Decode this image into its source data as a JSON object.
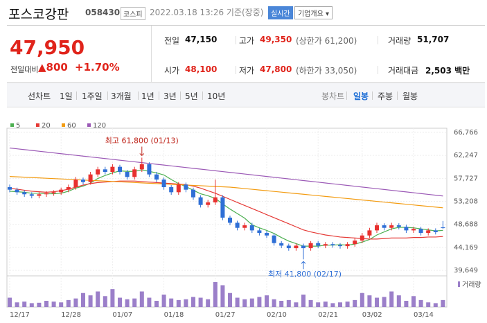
{
  "header": {
    "title": "포스코강판",
    "code": "058430",
    "market": "코스피",
    "timestamp": "2022.03.18 13:26 기준(장중)",
    "realtime": "실시간",
    "company": "기업개요 ▾"
  },
  "quote": {
    "price": "47,950",
    "change_label": "전일대비",
    "change": "▲800",
    "change_pct": "+1.70%",
    "cells": [
      {
        "label": "전일",
        "value": "47,150"
      },
      {
        "label": "고가",
        "value": "49,350",
        "note": "(상한가 61,200)"
      },
      {
        "label": "거래량",
        "value": "51,707"
      },
      {
        "label": "시가",
        "value": "48,100"
      },
      {
        "label": "저가",
        "value": "47,800",
        "note": "(하한가 33,050)"
      },
      {
        "label": "거래대금",
        "value": "2,503 백만"
      }
    ]
  },
  "tabs": {
    "line": [
      "선차트",
      "1일",
      "1주일",
      "3개월",
      "1년",
      "3년",
      "5년",
      "10년"
    ],
    "candle": [
      "봉차트",
      "일봉",
      "주봉",
      "월봉"
    ]
  },
  "chart_data": {
    "type": "candlestick",
    "up_color": "#e8312f",
    "down_color": "#2f6fd6",
    "volume_color": "#9b7fc9",
    "volume_label": "거래량",
    "annotations": {
      "high": "최고 61,800 (01/13)",
      "low": "최저 41,800 (02/17)"
    },
    "categories": [
      "12/17",
      null,
      null,
      null,
      null,
      null,
      null,
      "12/28",
      null,
      null,
      null,
      null,
      null,
      null,
      "01/07",
      null,
      null,
      null,
      null,
      null,
      null,
      "01/18",
      null,
      null,
      null,
      null,
      null,
      null,
      "01/27",
      null,
      null,
      null,
      null,
      null,
      null,
      "02/10",
      null,
      null,
      null,
      null,
      null,
      null,
      "02/21",
      null,
      null,
      null,
      null,
      null,
      "03/02",
      null,
      null,
      null,
      null,
      null,
      null,
      "03/14",
      null,
      null,
      null,
      null
    ],
    "open": [
      56000,
      55500,
      55000,
      54600,
      54300,
      54600,
      54800,
      55000,
      55500,
      56000,
      57500,
      57000,
      58500,
      59500,
      59000,
      60000,
      59000,
      58000,
      59500,
      60500,
      58500,
      57500,
      56000,
      55000,
      56500,
      55500,
      54000,
      52500,
      53000,
      54000,
      50000,
      49000,
      48000,
      48500,
      47500,
      47000,
      46500,
      45000,
      44500,
      44000,
      44500,
      44000,
      45000,
      44500,
      44800,
      44600,
      44400,
      44800,
      45500,
      46500,
      47500,
      48500,
      48000,
      48500,
      48200,
      47500,
      47800,
      47000,
      47500,
      48100
    ],
    "high": [
      56500,
      55900,
      55400,
      55000,
      55000,
      55200,
      55400,
      55900,
      56500,
      58000,
      57900,
      59000,
      60000,
      60000,
      60500,
      60400,
      59400,
      60000,
      61800,
      60900,
      59000,
      57900,
      56400,
      57000,
      56900,
      55900,
      54400,
      53500,
      57500,
      54400,
      50400,
      49400,
      49000,
      49000,
      47900,
      47400,
      46900,
      45400,
      44900,
      44900,
      44900,
      45400,
      45400,
      45200,
      45200,
      45000,
      45200,
      46000,
      47000,
      48000,
      49000,
      48900,
      49000,
      48900,
      48600,
      48200,
      48200,
      47900,
      47900,
      49350
    ],
    "low": [
      55000,
      54500,
      54100,
      53800,
      53800,
      54100,
      54300,
      54500,
      55000,
      55500,
      56500,
      56500,
      58000,
      58500,
      58500,
      58500,
      57500,
      57500,
      59000,
      58000,
      57000,
      55500,
      54500,
      54500,
      55000,
      53500,
      52000,
      52000,
      52500,
      49500,
      48500,
      47500,
      47500,
      47000,
      46500,
      46000,
      44500,
      44000,
      43500,
      43500,
      41800,
      43500,
      44000,
      44000,
      44100,
      43900,
      43900,
      44300,
      45000,
      46000,
      47000,
      47500,
      47500,
      47700,
      47000,
      47000,
      46500,
      46500,
      46700,
      47800
    ],
    "close": [
      55500,
      55000,
      54600,
      54300,
      54600,
      54800,
      55000,
      55500,
      56000,
      57500,
      57000,
      58500,
      59500,
      59000,
      60000,
      59000,
      58000,
      59500,
      60500,
      58500,
      57500,
      56000,
      55000,
      56500,
      55500,
      54000,
      52500,
      53000,
      54000,
      50000,
      49000,
      48000,
      48500,
      47500,
      47000,
      46500,
      45000,
      44500,
      44000,
      44500,
      44000,
      45000,
      44500,
      44800,
      44600,
      44400,
      44800,
      45500,
      46500,
      47500,
      48500,
      48000,
      48500,
      48200,
      47500,
      47800,
      47000,
      47500,
      47150,
      47950
    ],
    "volume": [
      120000,
      60000,
      70000,
      50000,
      55000,
      80000,
      70000,
      60000,
      90000,
      110000,
      180000,
      150000,
      200000,
      140000,
      230000,
      120000,
      100000,
      110000,
      200000,
      120000,
      80000,
      160000,
      110000,
      90000,
      100000,
      130000,
      120000,
      100000,
      320000,
      280000,
      180000,
      120000,
      100000,
      110000,
      130000,
      150000,
      100000,
      80000,
      90000,
      60000,
      160000,
      90000,
      60000,
      70000,
      50000,
      60000,
      70000,
      90000,
      180000,
      150000,
      120000,
      130000,
      200000,
      150000,
      80000,
      140000,
      90000,
      60000,
      50000,
      90000
    ],
    "series": [
      {
        "name": "5",
        "color": "#4caf50",
        "values": [
          55200,
          55100,
          55000,
          54800,
          54800,
          54700,
          54700,
          54800,
          55200,
          55800,
          56200,
          56800,
          57700,
          58300,
          58800,
          59200,
          59100,
          59100,
          59400,
          59100,
          58800,
          58400,
          57500,
          56700,
          56100,
          55400,
          54700,
          54300,
          53800,
          52700,
          51700,
          50800,
          49900,
          48600,
          48000,
          47500,
          46900,
          46100,
          45400,
          44900,
          44400,
          44400,
          44400,
          44600,
          44600,
          44700,
          44600,
          44800,
          45200,
          45700,
          46600,
          47200,
          47800,
          48100,
          48100,
          48000,
          47800,
          47600,
          47400,
          47500
        ]
      },
      {
        "name": "20",
        "color": "#e53935",
        "values": [
          55800,
          55600,
          55400,
          55200,
          55100,
          55000,
          55100,
          55300,
          55600,
          56000,
          56400,
          56700,
          56900,
          57000,
          57100,
          57200,
          57200,
          57200,
          57100,
          57000,
          56900,
          56800,
          56700,
          56600,
          56500,
          56200,
          55800,
          55300,
          54800,
          54200,
          53600,
          53000,
          52400,
          51800,
          51200,
          50600,
          50000,
          49400,
          48800,
          48200,
          47600,
          47200,
          46900,
          46600,
          46400,
          46200,
          46100,
          46000,
          45900,
          45800,
          45800,
          45900,
          46000,
          46000,
          46000,
          46100,
          46100,
          46200,
          46200,
          46300
        ]
      },
      {
        "name": "60",
        "color": "#f39c12",
        "values": [
          58100,
          58030,
          57960,
          57890,
          57820,
          57750,
          57680,
          57610,
          57540,
          57470,
          57400,
          57330,
          57260,
          57190,
          57120,
          57050,
          56980,
          56910,
          56840,
          56770,
          56700,
          56630,
          56560,
          56490,
          56420,
          56350,
          56280,
          56210,
          56140,
          56070,
          56000,
          55860,
          55720,
          55580,
          55440,
          55300,
          55160,
          55020,
          54880,
          54740,
          54600,
          54460,
          54320,
          54180,
          54040,
          53900,
          53760,
          53620,
          53480,
          53340,
          53200,
          53060,
          52920,
          52780,
          52640,
          52500,
          52360,
          52220,
          52080,
          51940
        ]
      },
      {
        "name": "120",
        "color": "#9b59b6",
        "values": [
          63700,
          63540,
          63380,
          63220,
          63060,
          62900,
          62740,
          62580,
          62420,
          62260,
          62100,
          61940,
          61780,
          61620,
          61460,
          61300,
          61140,
          60980,
          60820,
          60660,
          60500,
          60340,
          60180,
          60020,
          59860,
          59700,
          59540,
          59380,
          59220,
          59060,
          58900,
          58740,
          58580,
          58420,
          58260,
          58100,
          57940,
          57780,
          57620,
          57460,
          57300,
          57140,
          56980,
          56820,
          56660,
          56500,
          56340,
          56180,
          56020,
          55860,
          55700,
          55540,
          55380,
          55220,
          55060,
          54900,
          54740,
          54580,
          54420,
          54260
        ]
      }
    ],
    "ylim": [
      39649,
      66766
    ],
    "yticks": [
      {
        "value": 39649,
        "label": "39,649"
      },
      {
        "value": 44169,
        "label": "44,169"
      },
      {
        "value": 48688,
        "label": "48,688"
      },
      {
        "value": 53208,
        "label": "53,208"
      },
      {
        "value": 57727,
        "label": "57,727"
      },
      {
        "value": 62247,
        "label": "62,247"
      },
      {
        "value": 66766,
        "label": "66,766"
      }
    ],
    "grid": true
  }
}
